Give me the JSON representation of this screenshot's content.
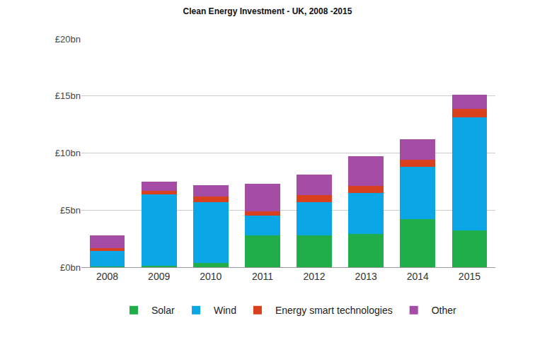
{
  "chart_data": {
    "type": "bar",
    "title": "Clean Energy Investment - UK, 2008 -2015",
    "categories": [
      "2008",
      "2009",
      "2010",
      "2011",
      "2012",
      "2013",
      "2014",
      "2015"
    ],
    "series": [
      {
        "name": "Solar",
        "color": "#1fae4a",
        "values": [
          0.05,
          0.15,
          0.4,
          2.8,
          2.8,
          2.9,
          4.2,
          3.2
        ]
      },
      {
        "name": "Wind",
        "color": "#0ba6e6",
        "values": [
          1.4,
          6.25,
          5.3,
          1.7,
          2.9,
          3.6,
          4.6,
          9.9
        ]
      },
      {
        "name": "Energy smart technologies",
        "color": "#d9411e",
        "values": [
          0.25,
          0.3,
          0.5,
          0.4,
          0.6,
          0.6,
          0.6,
          0.8
        ]
      },
      {
        "name": "Other",
        "color": "#a54ca6",
        "values": [
          1.1,
          0.8,
          1.0,
          2.4,
          1.8,
          2.6,
          1.8,
          1.2
        ]
      }
    ],
    "ylim": [
      0,
      20
    ],
    "yticks": [
      {
        "value": 0,
        "label": "£0bn"
      },
      {
        "value": 5,
        "label": "£5bn"
      },
      {
        "value": 10,
        "label": "£10bn"
      },
      {
        "value": 15,
        "label": "£15bn"
      },
      {
        "value": 20,
        "label": "£20bn"
      }
    ],
    "stacked": true,
    "grid": true,
    "legend": "bottom"
  }
}
